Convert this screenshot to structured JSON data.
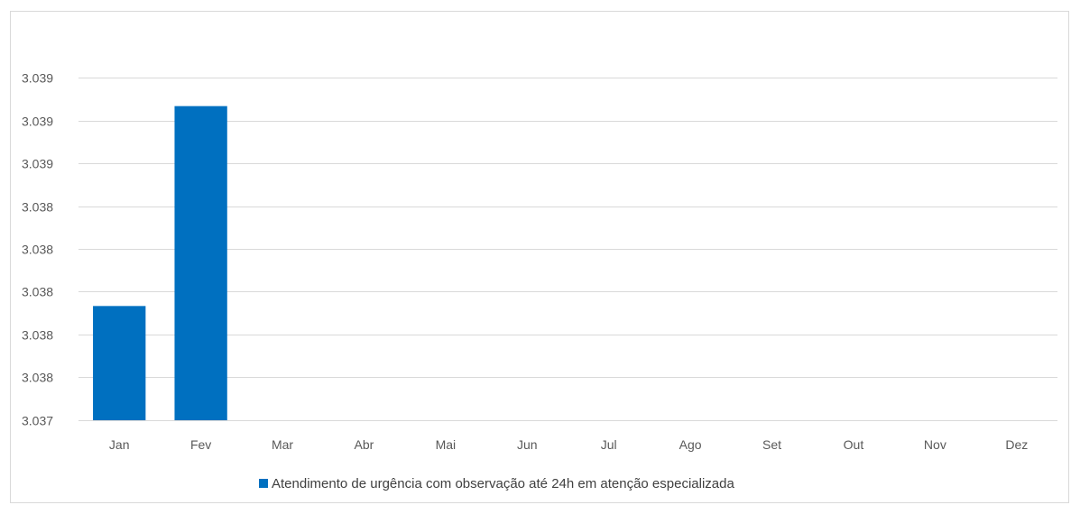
{
  "chart_data": {
    "type": "bar",
    "categories": [
      "Jan",
      "Fev",
      "Mar",
      "Abr",
      "Mai",
      "Jun",
      "Jul",
      "Ago",
      "Set",
      "Out",
      "Nov",
      "Dez"
    ],
    "series": [
      {
        "name": "Atendimento de urgência com observação até 24h em atenção especializada",
        "values": [
          3.0378,
          3.0392,
          null,
          null,
          null,
          null,
          null,
          null,
          null,
          null,
          null,
          null
        ],
        "color": "#0070c0"
      }
    ],
    "ylim": [
      3.037,
      3.0394
    ],
    "yticks": [
      3.037,
      3.0373,
      3.0376,
      3.0379,
      3.0382,
      3.0385,
      3.0388,
      3.0391,
      3.0394
    ],
    "ytick_labels": [
      "3.037",
      "3.038",
      "3.038",
      "3.038",
      "3.038",
      "3.038",
      "3.039",
      "3.039",
      "3.039"
    ],
    "grid": true,
    "legend_position": "bottom"
  }
}
